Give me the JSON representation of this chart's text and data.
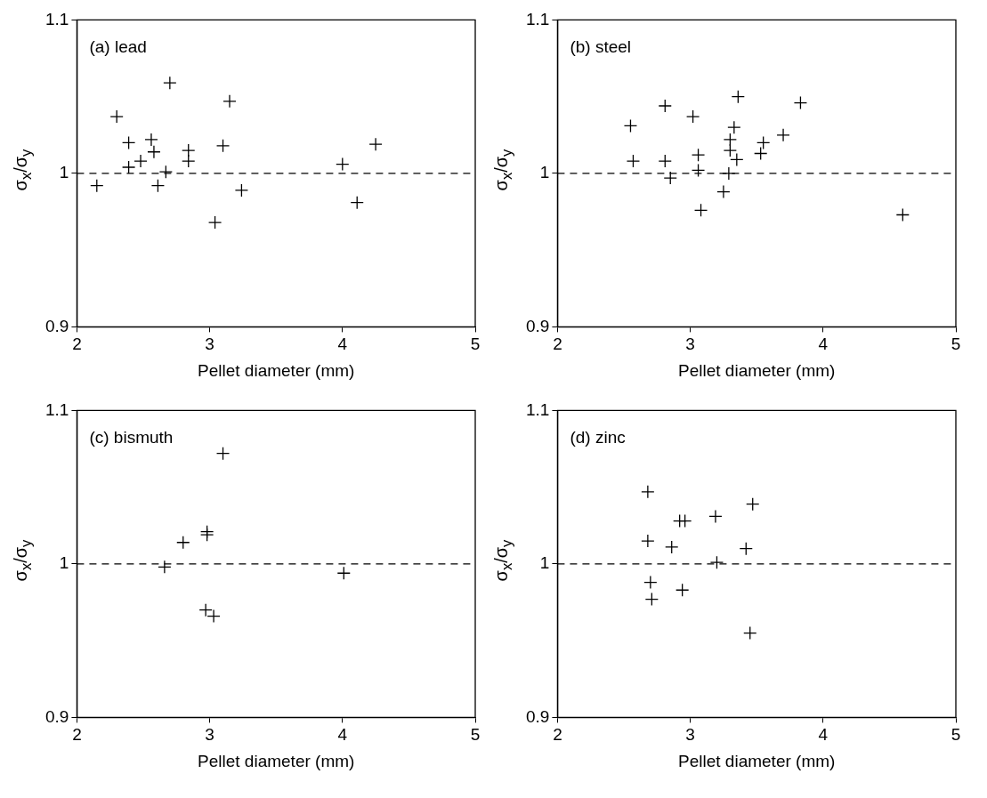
{
  "chart_data": [
    {
      "type": "scatter",
      "xlabel": "Pellet diameter (mm)",
      "ylabel": "σ$_{x}$/σ$_{y}$",
      "annotations": [
        "(a) lead"
      ],
      "xlim": [
        2,
        5
      ],
      "ylim": [
        0.9,
        1.1
      ],
      "xticks": [
        2,
        3,
        4,
        5
      ],
      "yticks": [
        0.9,
        1,
        1.1
      ],
      "grid": false,
      "legend": false,
      "marker": "cross",
      "ref_lines": [
        {
          "axis": "y",
          "value": 1,
          "color": "#000000",
          "line_style": "dashed"
        }
      ],
      "series": [
        {
          "color": "#000000",
          "x": [
            2.15,
            2.3,
            2.39,
            2.39,
            2.48,
            2.56,
            2.58,
            2.61,
            2.67,
            2.7,
            2.84,
            2.84,
            3.1,
            3.15,
            3.04,
            3.24,
            4.0,
            4.11,
            4.25
          ],
          "values": [
            0.992,
            1.037,
            1.02,
            1.004,
            1.008,
            1.022,
            1.014,
            0.992,
            1.001,
            1.059,
            1.015,
            1.008,
            1.018,
            1.047,
            0.968,
            0.989,
            1.006,
            0.981,
            1.019
          ]
        }
      ]
    },
    {
      "type": "scatter",
      "xlabel": "Pellet diameter (mm)",
      "ylabel": "σ$_{x}$/σ$_{y}$",
      "annotations": [
        "(b) steel"
      ],
      "xlim": [
        2,
        5
      ],
      "ylim": [
        0.9,
        1.1
      ],
      "xticks": [
        2,
        3,
        4,
        5
      ],
      "yticks": [
        0.9,
        1,
        1.1
      ],
      "grid": false,
      "legend": false,
      "marker": "cross",
      "ref_lines": [
        {
          "axis": "y",
          "value": 1,
          "color": "#000000",
          "line_style": "dashed"
        }
      ],
      "series": [
        {
          "color": "#000000",
          "x": [
            2.55,
            2.57,
            2.81,
            2.81,
            2.85,
            3.02,
            3.06,
            3.06,
            3.08,
            3.25,
            3.29,
            3.3,
            3.3,
            3.33,
            3.35,
            3.36,
            3.53,
            3.55,
            3.7,
            3.83,
            4.6
          ],
          "values": [
            1.031,
            1.008,
            1.044,
            1.008,
            0.997,
            1.037,
            1.012,
            1.002,
            0.976,
            0.988,
            1.0,
            1.022,
            1.015,
            1.03,
            1.009,
            1.05,
            1.013,
            1.02,
            1.025,
            1.046,
            0.973
          ]
        }
      ]
    },
    {
      "type": "scatter",
      "xlabel": "Pellet diameter (mm)",
      "ylabel": "σ$_{x}$/σ$_{y}$",
      "annotations": [
        "(c) bismuth"
      ],
      "xlim": [
        2,
        5
      ],
      "ylim": [
        0.9,
        1.1
      ],
      "xticks": [
        2,
        3,
        4,
        5
      ],
      "yticks": [
        0.9,
        1,
        1.1
      ],
      "grid": false,
      "legend": false,
      "marker": "cross",
      "ref_lines": [
        {
          "axis": "y",
          "value": 1,
          "color": "#000000",
          "line_style": "dashed"
        }
      ],
      "series": [
        {
          "color": "#000000",
          "x": [
            3.1,
            2.98,
            2.98,
            2.8,
            2.66,
            4.01,
            2.97,
            3.03
          ],
          "values": [
            1.072,
            1.021,
            1.019,
            1.014,
            0.998,
            0.994,
            0.97,
            0.966
          ]
        }
      ]
    },
    {
      "type": "scatter",
      "xlabel": "Pellet diameter (mm)",
      "ylabel": "σ$_{x}$/σ$_{y}$",
      "annotations": [
        "(d) zinc"
      ],
      "xlim": [
        2,
        5
      ],
      "ylim": [
        0.9,
        1.1
      ],
      "xticks": [
        2,
        3,
        4,
        5
      ],
      "yticks": [
        0.9,
        1,
        1.1
      ],
      "grid": false,
      "legend": false,
      "marker": "cross",
      "ref_lines": [
        {
          "axis": "y",
          "value": 1,
          "color": "#000000",
          "line_style": "dashed"
        }
      ],
      "series": [
        {
          "color": "#000000",
          "x": [
            2.68,
            2.68,
            2.7,
            2.71,
            2.86,
            2.92,
            2.96,
            2.94,
            3.19,
            3.2,
            3.42,
            3.47,
            3.45
          ],
          "values": [
            1.047,
            1.015,
            0.988,
            0.977,
            1.011,
            1.028,
            1.028,
            0.983,
            1.031,
            1.001,
            1.01,
            1.039,
            0.955
          ]
        }
      ]
    }
  ]
}
